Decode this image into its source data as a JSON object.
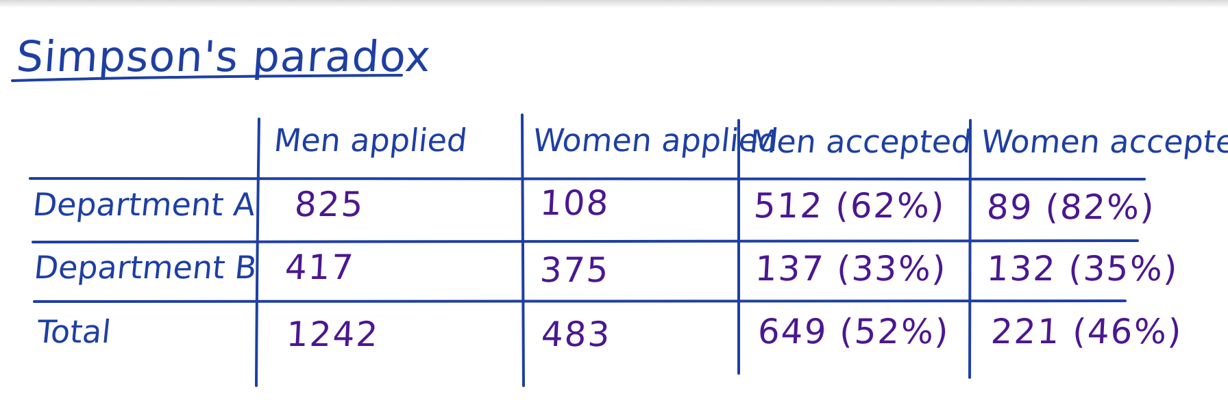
{
  "title": "Simpson's paradox",
  "colors": {
    "header_ink": "#1e3fa3",
    "value_ink": "#4b1790",
    "background": "#ffffff"
  },
  "table": {
    "columns": [
      "Men applied",
      "Women applied",
      "Men accepted",
      "Women accepted"
    ],
    "rows": [
      {
        "label": "Department A",
        "cells": [
          "825",
          "108",
          "512 (62%)",
          "89 (82%)"
        ]
      },
      {
        "label": "Department B",
        "cells": [
          "417",
          "375",
          "137 (33%)",
          "132 (35%)"
        ]
      },
      {
        "label": "Total",
        "cells": [
          "1242",
          "483",
          "649 (52%)",
          "221 (46%)"
        ]
      }
    ]
  }
}
